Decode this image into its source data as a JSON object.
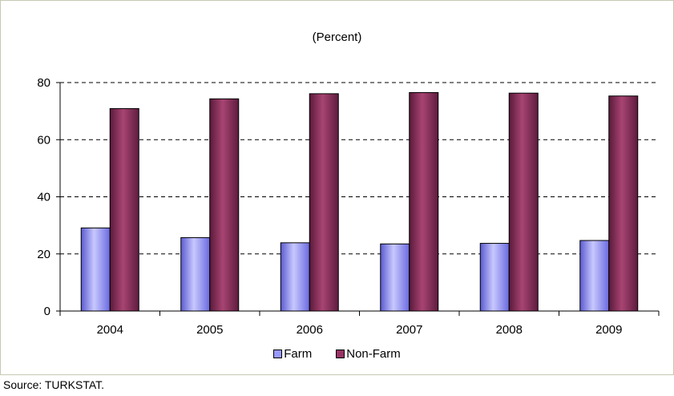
{
  "chart_data": {
    "type": "bar",
    "title": "(Percent)",
    "categories": [
      "2004",
      "2005",
      "2006",
      "2007",
      "2008",
      "2009"
    ],
    "series": [
      {
        "name": "Farm",
        "values": [
          29.1,
          25.7,
          23.9,
          23.5,
          23.7,
          24.7
        ],
        "color": "#9999ff"
      },
      {
        "name": "Non-Farm",
        "values": [
          70.9,
          74.3,
          76.1,
          76.5,
          76.3,
          75.3
        ],
        "color": "#993366"
      }
    ],
    "ylim": [
      0,
      80
    ],
    "yticks": [
      0,
      20,
      40,
      60,
      80
    ],
    "grid": true,
    "legend_placement": "bottom"
  },
  "source": "Source: TURKSTAT."
}
